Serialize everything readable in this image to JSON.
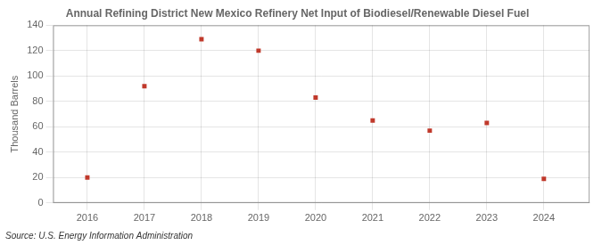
{
  "chart_data": {
    "type": "scatter",
    "title": "Annual Refining District New Mexico Refinery Net Input of Biodiesel/Renewable Diesel Fuel",
    "ylabel": "Thousand Barrels",
    "source": "Source: U.S. Energy Information Administration",
    "x": [
      2016,
      2017,
      2018,
      2019,
      2020,
      2021,
      2022,
      2023,
      2024
    ],
    "values": [
      20,
      92,
      129,
      120,
      83,
      65,
      57,
      63,
      19
    ],
    "color": "#c0392b",
    "marker": "square",
    "xlim": [
      2015.4,
      2024.8
    ],
    "ylim": [
      0,
      140
    ],
    "xticks": [
      2016,
      2017,
      2018,
      2019,
      2020,
      2021,
      2022,
      2023,
      2024
    ],
    "yticks": [
      0,
      20,
      40,
      60,
      80,
      100,
      120,
      140
    ],
    "grid": true
  }
}
